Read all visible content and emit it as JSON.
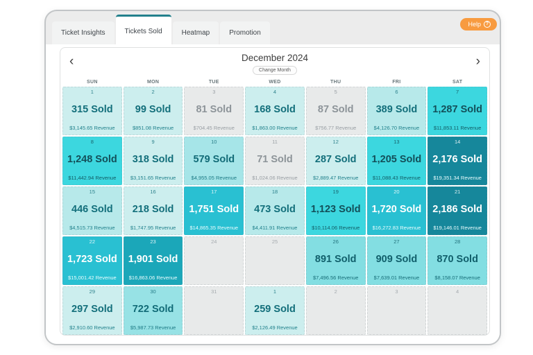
{
  "colors": {
    "accent_teal": "#23808c",
    "help_orange": "#f89b40"
  },
  "help": {
    "label": "Help",
    "icon": "?"
  },
  "tabs": [
    {
      "label": "Ticket Insights",
      "active": false
    },
    {
      "label": "Tickets Sold",
      "active": true
    },
    {
      "label": "Heatmap",
      "active": false
    },
    {
      "label": "Promotion",
      "active": false
    }
  ],
  "palette": {
    "e": {
      "bg": "#e8eaea",
      "fg": "#9aa0a5",
      "rev": "#9aa0a5"
    },
    "g": {
      "bg": "#e8eaea",
      "fg": "#8d9499",
      "rev": "#989ea3"
    },
    "l1": {
      "bg": "#cceeee",
      "fg": "#136f7b",
      "rev": "#20808b"
    },
    "l2": {
      "bg": "#b7e9ea",
      "fg": "#136f7b",
      "rev": "#20808b"
    },
    "l3": {
      "bg": "#a6e5e8",
      "fg": "#126b77",
      "rev": "#1d7a85"
    },
    "l4": {
      "bg": "#97e2e5",
      "fg": "#126b77",
      "rev": "#1d7a85"
    },
    "l5": {
      "bg": "#83dee2",
      "fg": "#115f6b",
      "rev": "#176d78"
    },
    "c1": {
      "bg": "#3cd7df",
      "fg": "#134f59",
      "rev": "#135b64"
    },
    "c2": {
      "bg": "#29c0d2",
      "fg": "#ffffff",
      "rev": "#eafcfd"
    },
    "c3": {
      "bg": "#1ba7b9",
      "fg": "#ffffff",
      "rev": "#eafcfd"
    },
    "c4": {
      "bg": "#16879b",
      "fg": "#ffffff",
      "rev": "#eafcfd"
    }
  },
  "calendar": {
    "title": "December 2024",
    "change_month_label": "Change Month",
    "prev_icon": "‹",
    "next_icon": "›",
    "weekdays": [
      "SUN",
      "MON",
      "TUE",
      "WED",
      "THU",
      "FRI",
      "SAT"
    ],
    "cells": [
      {
        "day": "1",
        "sold": "315 Sold",
        "revenue": "$3,145.65 Revenue",
        "tone": "l1"
      },
      {
        "day": "2",
        "sold": "99 Sold",
        "revenue": "$851.08 Revenue",
        "tone": "l1"
      },
      {
        "day": "3",
        "sold": "81 Sold",
        "revenue": "$704.45 Revenue",
        "tone": "g"
      },
      {
        "day": "4",
        "sold": "168 Sold",
        "revenue": "$1,863.00 Revenue",
        "tone": "l1"
      },
      {
        "day": "5",
        "sold": "87 Sold",
        "revenue": "$756.77 Revenue",
        "tone": "g"
      },
      {
        "day": "6",
        "sold": "389 Sold",
        "revenue": "$4,126.70 Revenue",
        "tone": "l2"
      },
      {
        "day": "7",
        "sold": "1,287 Sold",
        "revenue": "$11,853.11 Revenue",
        "tone": "c1"
      },
      {
        "day": "8",
        "sold": "1,248 Sold",
        "revenue": "$11,442.94 Revenue",
        "tone": "c1"
      },
      {
        "day": "9",
        "sold": "318 Sold",
        "revenue": "$3,151.65 Revenue",
        "tone": "l1"
      },
      {
        "day": "10",
        "sold": "579 Sold",
        "revenue": "$4,955.05 Revenue",
        "tone": "l3"
      },
      {
        "day": "11",
        "sold": "71 Sold",
        "revenue": "$1,024.06 Revenue",
        "tone": "g"
      },
      {
        "day": "12",
        "sold": "287 Sold",
        "revenue": "$2,889.47 Revenue",
        "tone": "l1"
      },
      {
        "day": "13",
        "sold": "1,205 Sold",
        "revenue": "$11,088.43 Revenue",
        "tone": "c1"
      },
      {
        "day": "14",
        "sold": "2,176 Sold",
        "revenue": "$19,351.34 Revenue",
        "tone": "c4"
      },
      {
        "day": "15",
        "sold": "446 Sold",
        "revenue": "$4,515.73 Revenue",
        "tone": "l2"
      },
      {
        "day": "16",
        "sold": "218 Sold",
        "revenue": "$1,747.95 Revenue",
        "tone": "l1"
      },
      {
        "day": "17",
        "sold": "1,751 Sold",
        "revenue": "$14,865.35 Revenue",
        "tone": "c2"
      },
      {
        "day": "18",
        "sold": "473 Sold",
        "revenue": "$4,411.91 Revenue",
        "tone": "l2"
      },
      {
        "day": "19",
        "sold": "1,123 Sold",
        "revenue": "$10,114.06 Revenue",
        "tone": "c1"
      },
      {
        "day": "20",
        "sold": "1,720 Sold",
        "revenue": "$16,272.83 Revenue",
        "tone": "c2"
      },
      {
        "day": "21",
        "sold": "2,186 Sold",
        "revenue": "$19,146.01 Revenue",
        "tone": "c4"
      },
      {
        "day": "22",
        "sold": "1,723 Sold",
        "revenue": "$15,001.42 Revenue",
        "tone": "c2"
      },
      {
        "day": "23",
        "sold": "1,901 Sold",
        "revenue": "$16,863.06 Revenue",
        "tone": "c3"
      },
      {
        "day": "24",
        "sold": "",
        "revenue": "",
        "tone": "e"
      },
      {
        "day": "25",
        "sold": "",
        "revenue": "",
        "tone": "e"
      },
      {
        "day": "26",
        "sold": "891 Sold",
        "revenue": "$7,496.56 Revenue",
        "tone": "l5"
      },
      {
        "day": "27",
        "sold": "909 Sold",
        "revenue": "$7,639.01 Revenue",
        "tone": "l5"
      },
      {
        "day": "28",
        "sold": "870 Sold",
        "revenue": "$8,158.07 Revenue",
        "tone": "l5"
      },
      {
        "day": "29",
        "sold": "297 Sold",
        "revenue": "$2,910.60 Revenue",
        "tone": "l1"
      },
      {
        "day": "30",
        "sold": "722 Sold",
        "revenue": "$5,987.73 Revenue",
        "tone": "l4"
      },
      {
        "day": "31",
        "sold": "",
        "revenue": "",
        "tone": "e"
      },
      {
        "day": "1",
        "sold": "259 Sold",
        "revenue": "$2,126.49 Revenue",
        "tone": "l1"
      },
      {
        "day": "2",
        "sold": "",
        "revenue": "",
        "tone": "e"
      },
      {
        "day": "3",
        "sold": "",
        "revenue": "",
        "tone": "e"
      },
      {
        "day": "4",
        "sold": "",
        "revenue": "",
        "tone": "e"
      }
    ]
  }
}
